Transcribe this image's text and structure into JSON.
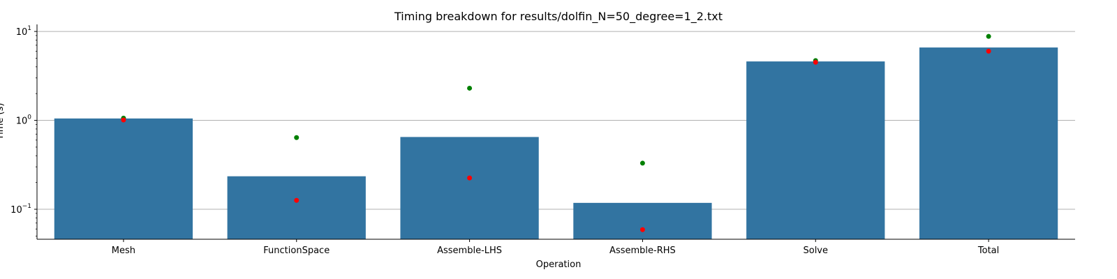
{
  "chart_data": {
    "type": "bar",
    "title": "Timing breakdown for results/dolfin_N=50_degree=1_2.txt",
    "xlabel": "Operation",
    "ylabel": "Time (s)",
    "yscale": "log",
    "ylim": [
      0.046,
      12
    ],
    "grid": "y-major",
    "categories": [
      "Mesh",
      "FunctionSpace",
      "Assemble-LHS",
      "Assemble-RHS",
      "Solve",
      "Total"
    ],
    "series": [
      {
        "values": [
          1.05,
          0.235,
          0.65,
          0.118,
          4.6,
          6.6
        ],
        "color": "#3274a1"
      }
    ],
    "markers": [
      {
        "color": "#008000",
        "values": [
          1.06,
          0.64,
          2.3,
          0.33,
          4.7,
          8.8
        ]
      },
      {
        "color": "#ff0000",
        "values": [
          1.01,
          0.126,
          0.225,
          0.059,
          4.5,
          6.0
        ]
      }
    ],
    "yticks": [
      {
        "value": 0.1,
        "base": "10",
        "exp": "−1"
      },
      {
        "value": 1,
        "base": "10",
        "exp": "0"
      },
      {
        "value": 10,
        "base": "10",
        "exp": "1"
      }
    ]
  }
}
